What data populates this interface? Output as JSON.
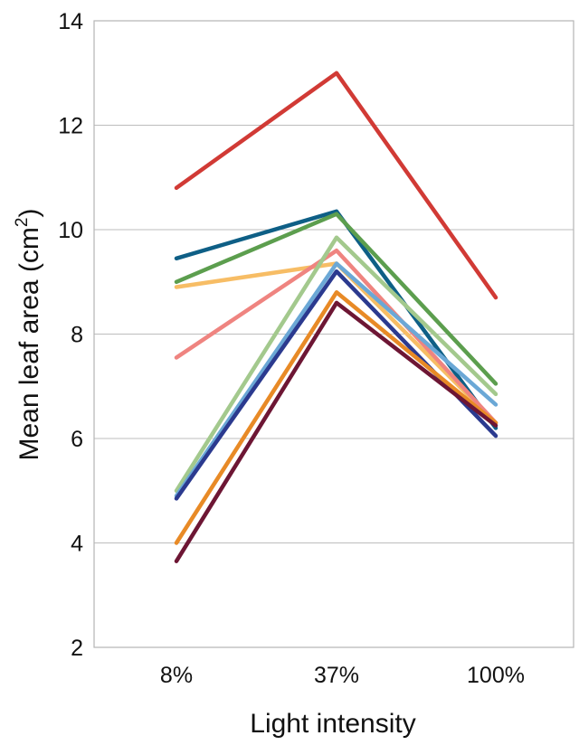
{
  "chart_data": {
    "type": "line",
    "title": "",
    "xlabel": "Light intensity",
    "ylabel_main": "Mean leaf area (cm",
    "ylabel_sup": "2",
    "ylabel_close": ")",
    "categories": [
      "8%",
      "37%",
      "100%"
    ],
    "ylim": [
      2,
      14
    ],
    "yticks": [
      "2",
      "4",
      "6",
      "8",
      "10",
      "12",
      "14"
    ],
    "grid": true,
    "legend": "none",
    "series": [
      {
        "color": "#d13a35",
        "values": [
          10.8,
          13.0,
          8.7
        ]
      },
      {
        "color": "#0e5f86",
        "values": [
          9.45,
          10.35,
          6.2
        ]
      },
      {
        "color": "#5c9e4e",
        "values": [
          9.0,
          10.3,
          7.05
        ]
      },
      {
        "color": "#f7bd65",
        "values": [
          8.9,
          9.35,
          6.3
        ]
      },
      {
        "color": "#ef8480",
        "values": [
          7.55,
          9.6,
          6.3
        ]
      },
      {
        "color": "#a3c98d",
        "values": [
          5.0,
          9.85,
          6.85
        ]
      },
      {
        "color": "#6ba8d6",
        "values": [
          4.9,
          9.35,
          6.65
        ]
      },
      {
        "color": "#2b3a8f",
        "values": [
          4.85,
          9.2,
          6.05
        ]
      },
      {
        "color": "#e88a26",
        "values": [
          4.0,
          8.8,
          6.3
        ]
      },
      {
        "color": "#6d1634",
        "values": [
          3.65,
          8.6,
          6.25
        ]
      }
    ]
  }
}
